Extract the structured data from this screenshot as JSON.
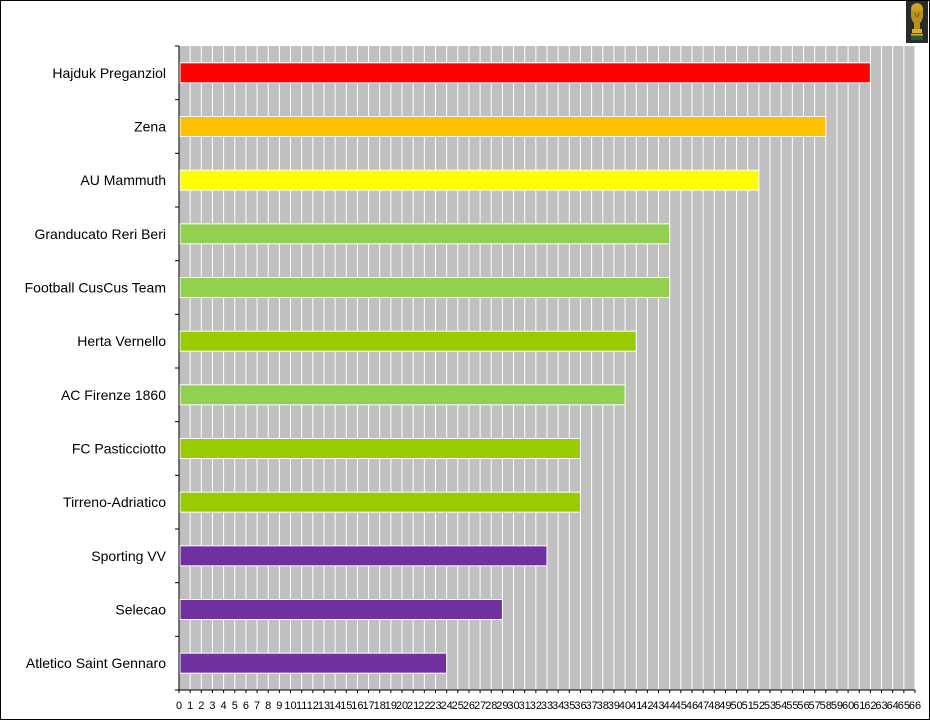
{
  "chart_data": {
    "type": "bar",
    "orientation": "horizontal",
    "title": "",
    "xlabel": "",
    "ylabel": "",
    "xlim": [
      0,
      66
    ],
    "x_tick_step": 1,
    "grid": true,
    "legend": "none",
    "plot_background": "#c0c0c0",
    "grid_color": "#ffffff",
    "categories": [
      "Hajduk Preganziol",
      "Zena",
      "AU Mammuth",
      "Granducato Reri Beri",
      "Football CusCus Team",
      "Herta Vernello",
      "AC Firenze 1860",
      "FC Pasticciotto",
      "Tirreno-Adriatico",
      "Sporting VV",
      "Selecao",
      "Atletico Saint Gennaro"
    ],
    "values": [
      62,
      58,
      52,
      44,
      44,
      41,
      40,
      36,
      36,
      33,
      29,
      24
    ],
    "colors": [
      "#ff0000",
      "#ffc000",
      "#ffff00",
      "#92d050",
      "#92d050",
      "#99cc00",
      "#92d050",
      "#99cc00",
      "#99cc00",
      "#7030a0",
      "#7030a0",
      "#7030a0"
    ]
  },
  "icons": {
    "corner": "trophy-icon"
  }
}
